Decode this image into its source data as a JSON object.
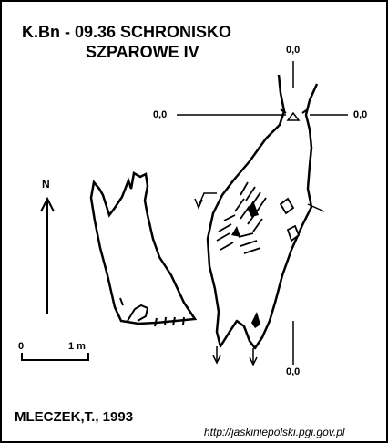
{
  "title": {
    "line1": "K.Bn - 09.36  SCHRONISKO",
    "line2": "SZPAROWE IV"
  },
  "levels": {
    "top": "0,0",
    "left": "0,0",
    "right": "0,0",
    "bottom": "0,0"
  },
  "north_label": "N",
  "scale": {
    "start": "0",
    "end": "1 m"
  },
  "author": "MLECZEK,T., 1993",
  "source_url": "http://jaskiniepolski.pgi.gov.pl"
}
